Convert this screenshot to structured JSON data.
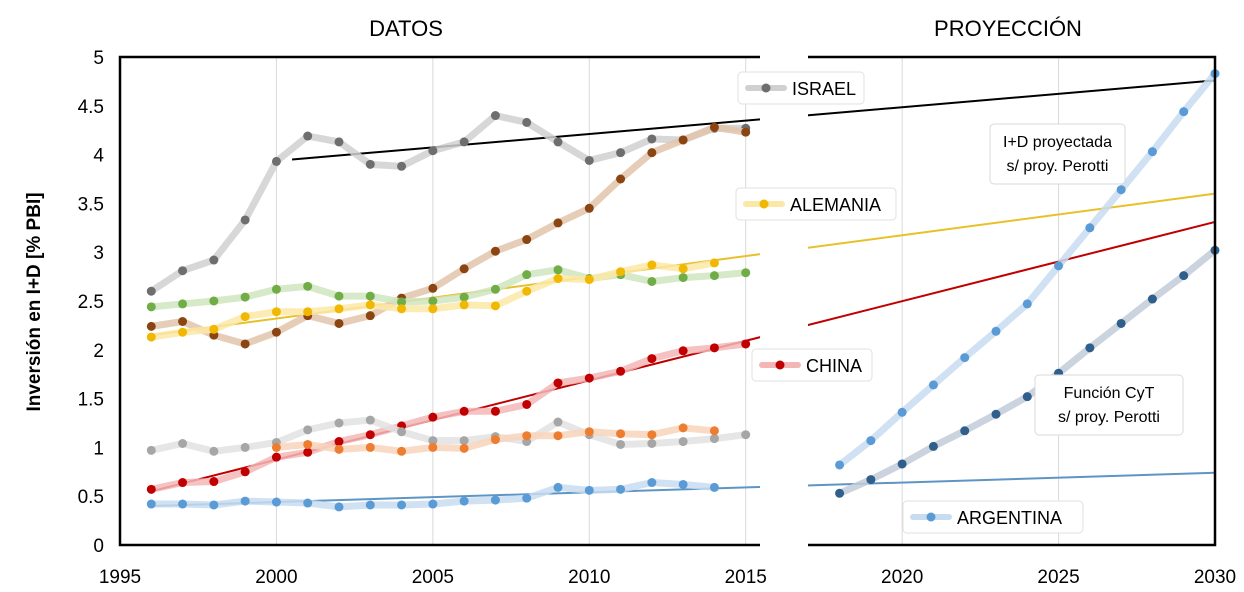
{
  "section_titles": {
    "data": "DATOS",
    "projection": "PROYECCIÓN"
  },
  "colors": {
    "israel": "#6e6e6e",
    "israel_band": "#d0d0d0",
    "alemania": "#f0b800",
    "alemania_line": "#e8c02a",
    "china": "#c00000",
    "china_band": "#f3b6b6",
    "argentina": "#5b9bd5",
    "argentina_line": "#5e95c4",
    "brown": "#8b4513",
    "green": "#70ad47",
    "grey_low": "#a6a6a6",
    "orange": "#ed7d31",
    "funcion": "#2f5f8a",
    "trend_israel": "#000000"
  },
  "chart_data": {
    "type": "line",
    "ylabel": "Inversión en I+D  [% PBI]",
    "xlim": [
      1995,
      2030
    ],
    "ylim": [
      0,
      5
    ],
    "x_ticks": [
      1995,
      2000,
      2005,
      2010,
      2015,
      2020,
      2025,
      2030
    ],
    "y_ticks": [
      "0",
      "0.5",
      "1",
      "1.5",
      "2",
      "2.5",
      "3",
      "3.5",
      "4",
      "4.5",
      "5"
    ],
    "vertical_grid": true,
    "series": [
      {
        "name": "ISRAEL",
        "key": "israel",
        "marker": "#6e6e6e",
        "band": "#d0d0d0",
        "x": [
          1996,
          1997,
          1998,
          1999,
          2000,
          2001,
          2002,
          2003,
          2004,
          2005,
          2006,
          2007,
          2008,
          2009,
          2010,
          2011,
          2012,
          2013,
          2014,
          2015
        ],
        "y": [
          2.6,
          2.81,
          2.92,
          3.33,
          3.93,
          4.19,
          4.13,
          3.9,
          3.88,
          4.04,
          4.13,
          4.4,
          4.33,
          4.13,
          3.94,
          4.02,
          4.16,
          4.15,
          4.27,
          4.27
        ]
      },
      {
        "key": "brown",
        "marker": "#8b4513",
        "band": "#e2c4ab",
        "x": [
          1996,
          1997,
          1998,
          1999,
          2000,
          2001,
          2002,
          2003,
          2004,
          2005,
          2006,
          2007,
          2008,
          2009,
          2010,
          2011,
          2012,
          2013,
          2014,
          2015
        ],
        "y": [
          2.24,
          2.29,
          2.15,
          2.06,
          2.18,
          2.35,
          2.27,
          2.35,
          2.53,
          2.63,
          2.83,
          3.01,
          3.13,
          3.3,
          3.45,
          3.75,
          4.02,
          4.15,
          4.28,
          4.23
        ]
      },
      {
        "key": "green",
        "marker": "#70ad47",
        "band": "#cfe5bf",
        "x": [
          1996,
          1997,
          1998,
          1999,
          2000,
          2001,
          2002,
          2003,
          2004,
          2005,
          2006,
          2007,
          2008,
          2009,
          2010,
          2011,
          2012,
          2013,
          2014,
          2015
        ],
        "y": [
          2.44,
          2.47,
          2.5,
          2.54,
          2.62,
          2.65,
          2.55,
          2.55,
          2.49,
          2.5,
          2.54,
          2.62,
          2.77,
          2.82,
          2.73,
          2.77,
          2.7,
          2.74,
          2.76,
          2.79
        ]
      },
      {
        "name": "ALEMANIA",
        "key": "alemania",
        "marker": "#f0b800",
        "band": "#fbe7a6",
        "x": [
          1996,
          1997,
          1998,
          1999,
          2000,
          2001,
          2002,
          2003,
          2004,
          2005,
          2006,
          2007,
          2008,
          2009,
          2010,
          2011,
          2012,
          2013,
          2014
        ],
        "y": [
          2.13,
          2.18,
          2.21,
          2.34,
          2.39,
          2.39,
          2.42,
          2.46,
          2.42,
          2.42,
          2.46,
          2.45,
          2.6,
          2.73,
          2.72,
          2.8,
          2.87,
          2.83,
          2.89
        ]
      },
      {
        "name": "CHINA",
        "key": "china",
        "marker": "#c00000",
        "band": "#f3b6b6",
        "x": [
          1996,
          1997,
          1998,
          1999,
          2000,
          2001,
          2002,
          2003,
          2004,
          2005,
          2006,
          2007,
          2008,
          2009,
          2010,
          2011,
          2012,
          2013,
          2014,
          2015
        ],
        "y": [
          0.57,
          0.64,
          0.65,
          0.75,
          0.9,
          0.95,
          1.06,
          1.13,
          1.22,
          1.31,
          1.37,
          1.37,
          1.44,
          1.66,
          1.71,
          1.78,
          1.91,
          1.99,
          2.02,
          2.06
        ]
      },
      {
        "key": "grey_low",
        "marker": "#a6a6a6",
        "band": "#e2e2e2",
        "x": [
          1996,
          1997,
          1998,
          1999,
          2000,
          2001,
          2002,
          2003,
          2004,
          2005,
          2006,
          2007,
          2008,
          2009,
          2010,
          2011,
          2012,
          2013,
          2014,
          2015
        ],
        "y": [
          0.97,
          1.04,
          0.96,
          1.0,
          1.05,
          1.18,
          1.25,
          1.28,
          1.16,
          1.07,
          1.07,
          1.11,
          1.06,
          1.26,
          1.13,
          1.03,
          1.04,
          1.06,
          1.09,
          1.13
        ]
      },
      {
        "key": "orange",
        "marker": "#ed7d31",
        "band": "#f8d5bb",
        "x": [
          2000,
          2001,
          2002,
          2003,
          2004,
          2005,
          2006,
          2007,
          2008,
          2009,
          2010,
          2011,
          2012,
          2013,
          2014
        ],
        "y": [
          1.0,
          1.03,
          0.98,
          1.0,
          0.96,
          1.0,
          0.99,
          1.08,
          1.12,
          1.12,
          1.16,
          1.14,
          1.13,
          1.2,
          1.17
        ]
      },
      {
        "name": "ARGENTINA",
        "key": "argentina",
        "marker": "#5b9bd5",
        "band": "#c7dcf0",
        "x": [
          1996,
          1997,
          1998,
          1999,
          2000,
          2001,
          2002,
          2003,
          2004,
          2005,
          2006,
          2007,
          2008,
          2009,
          2010,
          2011,
          2012,
          2013,
          2014
        ],
        "y": [
          0.42,
          0.42,
          0.41,
          0.45,
          0.44,
          0.43,
          0.39,
          0.41,
          0.41,
          0.42,
          0.45,
          0.46,
          0.48,
          0.59,
          0.56,
          0.57,
          0.64,
          0.62,
          0.59
        ]
      },
      {
        "key": "proj_id",
        "marker": "#5b9bd5",
        "band": "#c7dcf0",
        "x": [
          2018,
          2019,
          2020,
          2021,
          2022,
          2023,
          2024,
          2025,
          2026,
          2027,
          2028,
          2029,
          2030
        ],
        "y": [
          0.82,
          1.07,
          1.36,
          1.64,
          1.92,
          2.19,
          2.47,
          2.86,
          3.25,
          3.64,
          4.03,
          4.44,
          4.83
        ]
      },
      {
        "key": "proj_funcion",
        "marker": "#2f5f8a",
        "band": "#c2cdd8",
        "x": [
          2018,
          2019,
          2020,
          2021,
          2022,
          2023,
          2024,
          2025,
          2026,
          2027,
          2028,
          2029,
          2030
        ],
        "y": [
          0.53,
          0.67,
          0.83,
          1.01,
          1.17,
          1.34,
          1.52,
          1.76,
          2.02,
          2.27,
          2.52,
          2.76,
          3.02
        ]
      }
    ],
    "trendlines": [
      {
        "key": "israel",
        "x": [
          2000.5,
          2030
        ],
        "y": [
          3.95,
          4.76
        ],
        "color": "#000000"
      },
      {
        "key": "alemania",
        "x": [
          1996,
          2030
        ],
        "y": [
          2.15,
          3.6
        ],
        "color": "#e8c02a"
      },
      {
        "key": "china",
        "x": [
          1996,
          2030
        ],
        "y": [
          0.55,
          3.31
        ],
        "color": "#c00000"
      },
      {
        "key": "argentina",
        "x": [
          1996,
          2030
        ],
        "y": [
          0.4,
          0.74
        ],
        "color": "#5e95c4"
      }
    ],
    "annotations": [
      {
        "key": "proj_id",
        "lines": [
          "I+D proyectada",
          "s/ proy. Perotti"
        ]
      },
      {
        "key": "proj_funcion",
        "lines": [
          "Función CyT",
          "s/ proy. Perotti"
        ]
      }
    ]
  }
}
